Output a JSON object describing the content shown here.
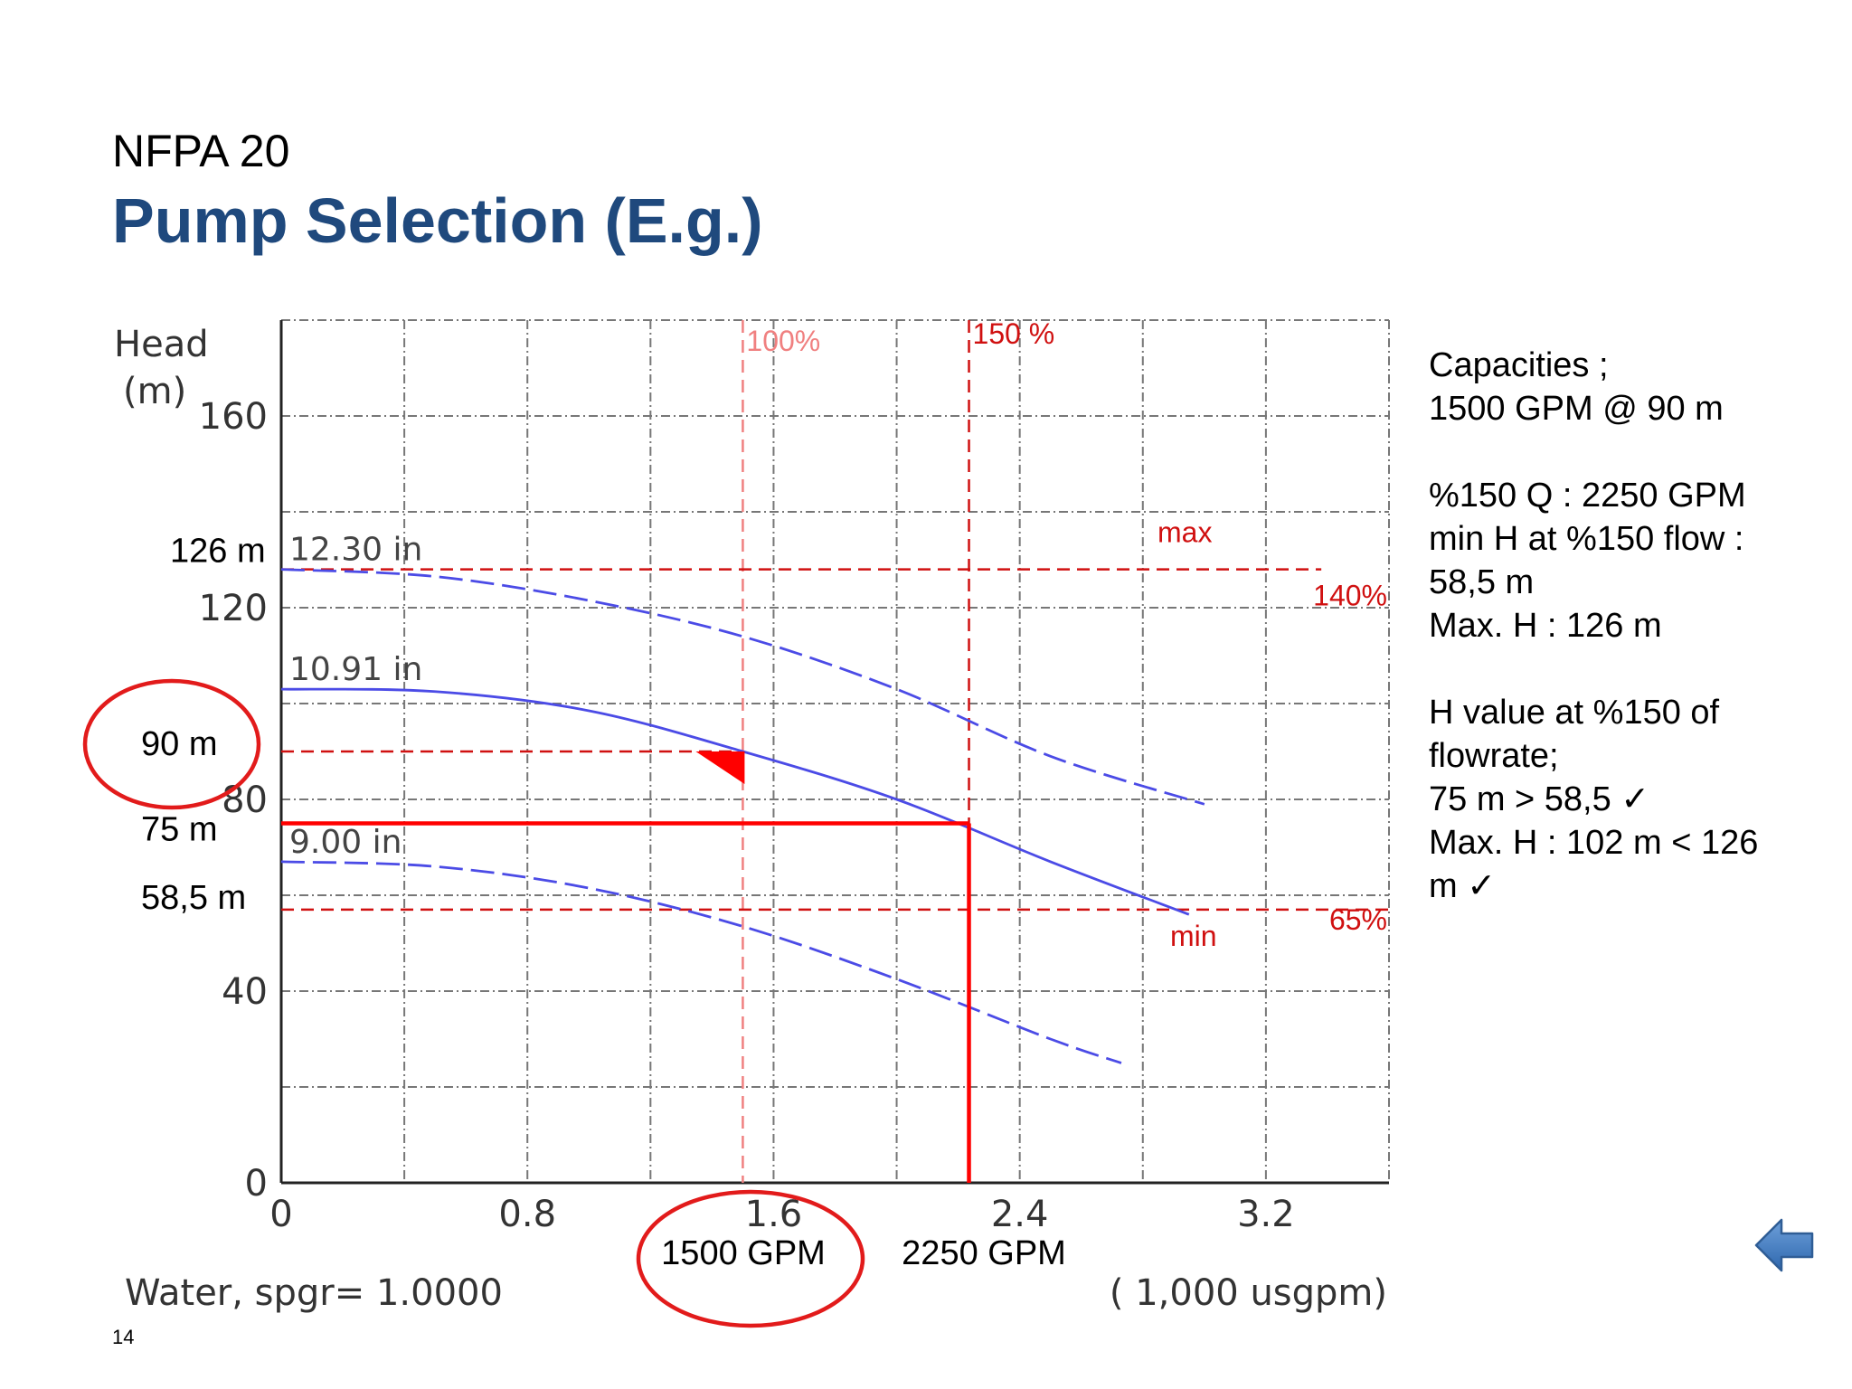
{
  "slide": {
    "overtitle": "NFPA 20",
    "title": "Pump Selection (E.g.)",
    "page_number": "14",
    "nav_icon": "back-arrow-icon"
  },
  "notes": {
    "block1": [
      "Capacities ;",
      "1500 GPM @ 90 m"
    ],
    "block2": [
      "%150 Q : 2250 GPM",
      "min H at %150 flow :",
      "58,5 m",
      "Max. H : 126 m"
    ],
    "block3": [
      "H value at %150 of",
      "flowrate;",
      "75 m > 58,5 ✓",
      "Max. H : 102 m < 126",
      "m  ✓"
    ]
  },
  "chart_data": {
    "type": "line",
    "ylabel": "Head\n(m)",
    "xunit": "( 1,000 usgpm)",
    "fluid_label": "Water, spgr= 1.0000",
    "xlim": [
      0,
      3.6
    ],
    "ylim": [
      0,
      180
    ],
    "x_ticks": [
      0,
      0.8,
      1.6,
      2.4,
      3.2
    ],
    "x_tick_labels": [
      "0",
      "0.8",
      "1.6",
      "2.4",
      "3.2"
    ],
    "y_ticks": [
      0,
      40,
      80,
      120,
      160
    ],
    "y_tick_labels": [
      "0",
      "40",
      "80",
      "120",
      "160"
    ],
    "grid": {
      "x_step": 0.4,
      "y_step": 20
    },
    "series": [
      {
        "name": "12.30 in",
        "color": "#4B4BE6",
        "dashed": true,
        "x": [
          0,
          0.5,
          1.0,
          1.5,
          2.0,
          2.5,
          3.0
        ],
        "y": [
          128,
          126.5,
          121.5,
          114,
          103,
          89,
          79
        ]
      },
      {
        "name": "10.91 in",
        "color": "#4B4BE6",
        "dashed": false,
        "x": [
          0,
          0.5,
          1.0,
          1.5,
          2.0,
          2.5,
          2.95
        ],
        "y": [
          103,
          102.5,
          98.5,
          90,
          80,
          67,
          56
        ]
      },
      {
        "name": "9.00 in",
        "color": "#4B4BE6",
        "dashed": true,
        "x": [
          0,
          0.5,
          1.0,
          1.5,
          2.0,
          2.5,
          2.73
        ],
        "y": [
          67,
          66,
          61.5,
          53.5,
          42.5,
          30,
          25
        ]
      }
    ],
    "ref_vlines": [
      {
        "x": 1.5,
        "label": "100%",
        "color": "#F08080"
      },
      {
        "x": 2.235,
        "label": "150 %",
        "color": "#D01010"
      }
    ],
    "ref_hlines": [
      {
        "y": 128,
        "label": "max",
        "pct_label": "140%",
        "color": "#D01010",
        "x_end": 3.38
      },
      {
        "y": 90,
        "label": "",
        "pct_label": "",
        "color": "#D01010",
        "x_end": 1.5
      },
      {
        "y": 57,
        "label": "min",
        "pct_label": "65%",
        "color": "#D01010",
        "x_end": 3.6
      }
    ],
    "selection_point": {
      "x": 1.5,
      "y": 90,
      "marker": "triangle",
      "color": "#FF0000"
    },
    "duty_lines": {
      "x": 2.235,
      "y": 75,
      "color": "#FF0000"
    },
    "annotations": {
      "y_values": [
        {
          "y": 128,
          "text": "126 m"
        },
        {
          "y": 90,
          "text": "90 m",
          "circled": true
        },
        {
          "y": 75,
          "text": "75 m"
        },
        {
          "y": 57,
          "text": "58,5 m"
        }
      ],
      "x_values": [
        {
          "x": 1.5,
          "text": "1500 GPM",
          "circled": true
        },
        {
          "x": 2.235,
          "text": "2250 GPM"
        }
      ]
    }
  }
}
